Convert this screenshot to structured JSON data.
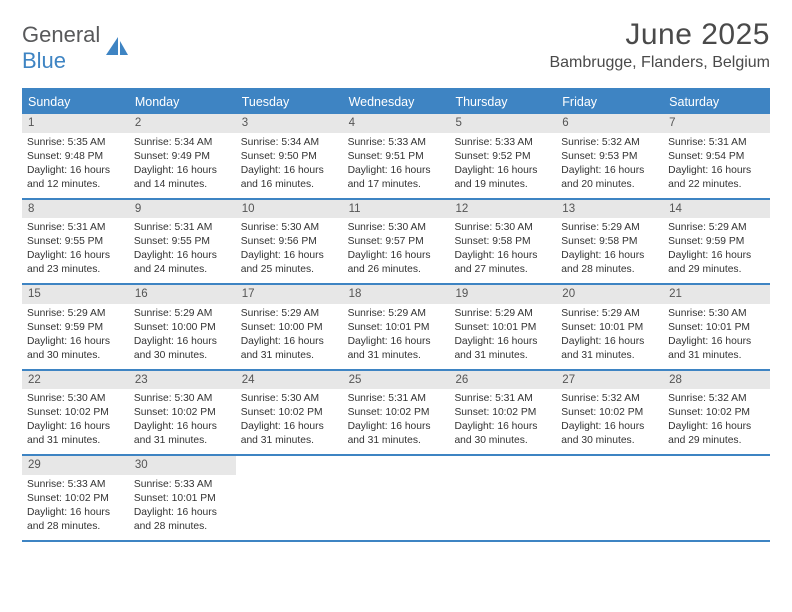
{
  "brand": {
    "top": "General",
    "bottom": "Blue"
  },
  "month_title": "June 2025",
  "location": "Bambrugge, Flanders, Belgium",
  "colors": {
    "accent": "#3e84c3",
    "day_num_bg": "#e7e7e7",
    "text": "#333333",
    "brand_grey": "#58595b"
  },
  "weekdays": [
    "Sunday",
    "Monday",
    "Tuesday",
    "Wednesday",
    "Thursday",
    "Friday",
    "Saturday"
  ],
  "calendar": {
    "type": "calendar-grid",
    "weeks": [
      [
        {
          "n": "1",
          "sr": "Sunrise: 5:35 AM",
          "ss": "Sunset: 9:48 PM",
          "dl": "Daylight: 16 hours and 12 minutes."
        },
        {
          "n": "2",
          "sr": "Sunrise: 5:34 AM",
          "ss": "Sunset: 9:49 PM",
          "dl": "Daylight: 16 hours and 14 minutes."
        },
        {
          "n": "3",
          "sr": "Sunrise: 5:34 AM",
          "ss": "Sunset: 9:50 PM",
          "dl": "Daylight: 16 hours and 16 minutes."
        },
        {
          "n": "4",
          "sr": "Sunrise: 5:33 AM",
          "ss": "Sunset: 9:51 PM",
          "dl": "Daylight: 16 hours and 17 minutes."
        },
        {
          "n": "5",
          "sr": "Sunrise: 5:33 AM",
          "ss": "Sunset: 9:52 PM",
          "dl": "Daylight: 16 hours and 19 minutes."
        },
        {
          "n": "6",
          "sr": "Sunrise: 5:32 AM",
          "ss": "Sunset: 9:53 PM",
          "dl": "Daylight: 16 hours and 20 minutes."
        },
        {
          "n": "7",
          "sr": "Sunrise: 5:31 AM",
          "ss": "Sunset: 9:54 PM",
          "dl": "Daylight: 16 hours and 22 minutes."
        }
      ],
      [
        {
          "n": "8",
          "sr": "Sunrise: 5:31 AM",
          "ss": "Sunset: 9:55 PM",
          "dl": "Daylight: 16 hours and 23 minutes."
        },
        {
          "n": "9",
          "sr": "Sunrise: 5:31 AM",
          "ss": "Sunset: 9:55 PM",
          "dl": "Daylight: 16 hours and 24 minutes."
        },
        {
          "n": "10",
          "sr": "Sunrise: 5:30 AM",
          "ss": "Sunset: 9:56 PM",
          "dl": "Daylight: 16 hours and 25 minutes."
        },
        {
          "n": "11",
          "sr": "Sunrise: 5:30 AM",
          "ss": "Sunset: 9:57 PM",
          "dl": "Daylight: 16 hours and 26 minutes."
        },
        {
          "n": "12",
          "sr": "Sunrise: 5:30 AM",
          "ss": "Sunset: 9:58 PM",
          "dl": "Daylight: 16 hours and 27 minutes."
        },
        {
          "n": "13",
          "sr": "Sunrise: 5:29 AM",
          "ss": "Sunset: 9:58 PM",
          "dl": "Daylight: 16 hours and 28 minutes."
        },
        {
          "n": "14",
          "sr": "Sunrise: 5:29 AM",
          "ss": "Sunset: 9:59 PM",
          "dl": "Daylight: 16 hours and 29 minutes."
        }
      ],
      [
        {
          "n": "15",
          "sr": "Sunrise: 5:29 AM",
          "ss": "Sunset: 9:59 PM",
          "dl": "Daylight: 16 hours and 30 minutes."
        },
        {
          "n": "16",
          "sr": "Sunrise: 5:29 AM",
          "ss": "Sunset: 10:00 PM",
          "dl": "Daylight: 16 hours and 30 minutes."
        },
        {
          "n": "17",
          "sr": "Sunrise: 5:29 AM",
          "ss": "Sunset: 10:00 PM",
          "dl": "Daylight: 16 hours and 31 minutes."
        },
        {
          "n": "18",
          "sr": "Sunrise: 5:29 AM",
          "ss": "Sunset: 10:01 PM",
          "dl": "Daylight: 16 hours and 31 minutes."
        },
        {
          "n": "19",
          "sr": "Sunrise: 5:29 AM",
          "ss": "Sunset: 10:01 PM",
          "dl": "Daylight: 16 hours and 31 minutes."
        },
        {
          "n": "20",
          "sr": "Sunrise: 5:29 AM",
          "ss": "Sunset: 10:01 PM",
          "dl": "Daylight: 16 hours and 31 minutes."
        },
        {
          "n": "21",
          "sr": "Sunrise: 5:30 AM",
          "ss": "Sunset: 10:01 PM",
          "dl": "Daylight: 16 hours and 31 minutes."
        }
      ],
      [
        {
          "n": "22",
          "sr": "Sunrise: 5:30 AM",
          "ss": "Sunset: 10:02 PM",
          "dl": "Daylight: 16 hours and 31 minutes."
        },
        {
          "n": "23",
          "sr": "Sunrise: 5:30 AM",
          "ss": "Sunset: 10:02 PM",
          "dl": "Daylight: 16 hours and 31 minutes."
        },
        {
          "n": "24",
          "sr": "Sunrise: 5:30 AM",
          "ss": "Sunset: 10:02 PM",
          "dl": "Daylight: 16 hours and 31 minutes."
        },
        {
          "n": "25",
          "sr": "Sunrise: 5:31 AM",
          "ss": "Sunset: 10:02 PM",
          "dl": "Daylight: 16 hours and 31 minutes."
        },
        {
          "n": "26",
          "sr": "Sunrise: 5:31 AM",
          "ss": "Sunset: 10:02 PM",
          "dl": "Daylight: 16 hours and 30 minutes."
        },
        {
          "n": "27",
          "sr": "Sunrise: 5:32 AM",
          "ss": "Sunset: 10:02 PM",
          "dl": "Daylight: 16 hours and 30 minutes."
        },
        {
          "n": "28",
          "sr": "Sunrise: 5:32 AM",
          "ss": "Sunset: 10:02 PM",
          "dl": "Daylight: 16 hours and 29 minutes."
        }
      ],
      [
        {
          "n": "29",
          "sr": "Sunrise: 5:33 AM",
          "ss": "Sunset: 10:02 PM",
          "dl": "Daylight: 16 hours and 28 minutes."
        },
        {
          "n": "30",
          "sr": "Sunrise: 5:33 AM",
          "ss": "Sunset: 10:01 PM",
          "dl": "Daylight: 16 hours and 28 minutes."
        },
        {
          "empty": true
        },
        {
          "empty": true
        },
        {
          "empty": true
        },
        {
          "empty": true
        },
        {
          "empty": true
        }
      ]
    ]
  }
}
